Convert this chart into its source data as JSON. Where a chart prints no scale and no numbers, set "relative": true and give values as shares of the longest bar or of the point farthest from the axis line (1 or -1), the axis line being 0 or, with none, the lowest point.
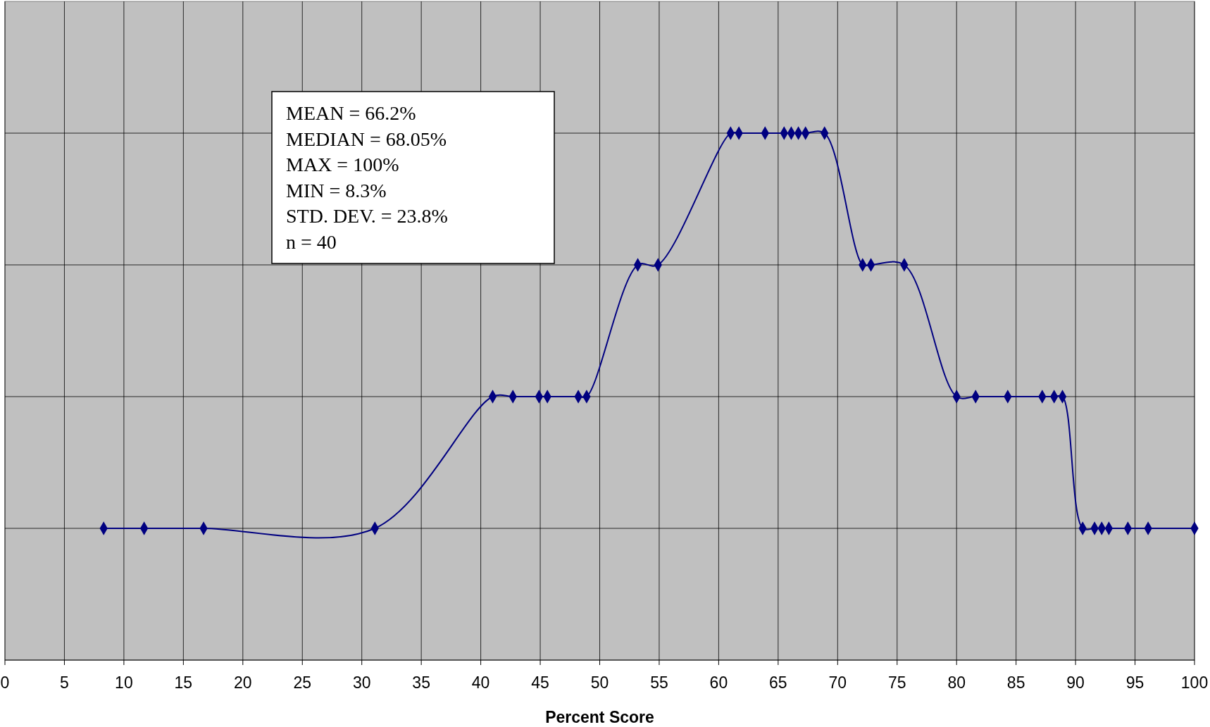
{
  "chart_data": {
    "type": "line",
    "xlabel": "Percent Score",
    "relative": true,
    "xlim": [
      0,
      100
    ],
    "xticks": [
      0,
      5,
      10,
      15,
      20,
      25,
      30,
      35,
      40,
      45,
      50,
      55,
      60,
      65,
      70,
      75,
      80,
      85,
      90,
      95,
      100
    ],
    "grid": true,
    "marker": "diamond",
    "line_style": "solid",
    "annotations": [
      "MEAN = 66.2%",
      "MEDIAN = 68.05%",
      "MAX = 100%",
      "MIN = 8.3%",
      "STD. DEV. = 23.8%",
      "n = 40"
    ],
    "series": [
      {
        "color": "#000080",
        "x": [
          8.3,
          11.7,
          16.7,
          31.1,
          41.0,
          42.7,
          44.9,
          45.6,
          48.2,
          48.9,
          53.2,
          54.9,
          61.0,
          61.7,
          63.9,
          65.5,
          66.1,
          66.7,
          67.3,
          68.9,
          72.1,
          72.8,
          75.6,
          80.0,
          81.6,
          84.3,
          87.2,
          88.2,
          88.9,
          90.6,
          91.6,
          92.2,
          92.8,
          94.4,
          96.1,
          100
        ],
        "values": [
          0.25,
          0.25,
          0.25,
          0.25,
          0.5,
          0.5,
          0.5,
          0.5,
          0.5,
          0.5,
          0.75,
          0.75,
          1,
          1,
          1,
          1,
          1,
          1,
          1,
          1,
          0.75,
          0.75,
          0.75,
          0.5,
          0.5,
          0.5,
          0.5,
          0.5,
          0.5,
          0.25,
          0.25,
          0.25,
          0.25,
          0.25,
          0.25,
          0.25
        ]
      }
    ]
  }
}
